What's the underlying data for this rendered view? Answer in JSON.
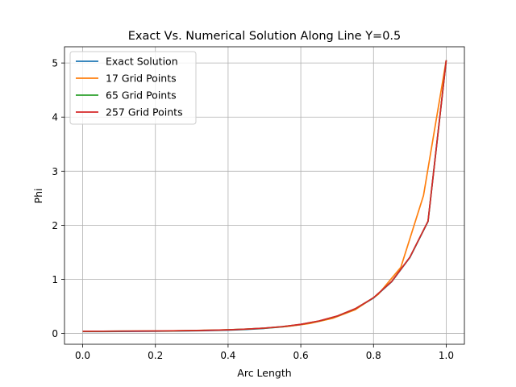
{
  "chart_data": {
    "type": "line",
    "title": "Exact Vs. Numerical Solution Along Line Y=0.5",
    "xlabel": "Arc Length",
    "ylabel": "Phi",
    "xlim": [
      -0.05,
      1.05
    ],
    "ylim": [
      -0.2,
      5.3
    ],
    "xticks": [
      0.0,
      0.2,
      0.4,
      0.6,
      0.8,
      1.0
    ],
    "xtick_labels": [
      "0.0",
      "0.2",
      "0.4",
      "0.6",
      "0.8",
      "1.0"
    ],
    "yticks": [
      0,
      1,
      2,
      3,
      4,
      5
    ],
    "ytick_labels": [
      "0",
      "1",
      "2",
      "3",
      "4",
      "5"
    ],
    "grid": true,
    "legend_position": "top-left",
    "series": [
      {
        "name": "Exact Solution",
        "color": "#1f77b4",
        "x": [
          0.0,
          0.05,
          0.1,
          0.15,
          0.2,
          0.25,
          0.3,
          0.35,
          0.4,
          0.45,
          0.5,
          0.55,
          0.6,
          0.65,
          0.7,
          0.75,
          0.8,
          0.85,
          0.9,
          0.95,
          1.0
        ],
        "y": [
          0.034,
          0.035,
          0.037,
          0.038,
          0.04,
          0.043,
          0.047,
          0.053,
          0.061,
          0.074,
          0.093,
          0.121,
          0.163,
          0.225,
          0.316,
          0.452,
          0.654,
          0.955,
          1.403,
          2.07,
          5.05
        ]
      },
      {
        "name": "17 Grid Points",
        "color": "#ff7f0e",
        "x": [
          0.0,
          0.0625,
          0.125,
          0.1875,
          0.25,
          0.3125,
          0.375,
          0.4375,
          0.5,
          0.5625,
          0.625,
          0.6875,
          0.75,
          0.8125,
          0.875,
          0.9375,
          1.0
        ],
        "y": [
          0.04,
          0.041,
          0.043,
          0.046,
          0.05,
          0.056,
          0.064,
          0.077,
          0.097,
          0.13,
          0.185,
          0.28,
          0.44,
          0.72,
          1.22,
          2.55,
          5.05
        ]
      },
      {
        "name": "65 Grid Points",
        "color": "#2ca02c",
        "x": [
          0.0,
          0.05,
          0.1,
          0.15,
          0.2,
          0.25,
          0.3,
          0.35,
          0.4,
          0.45,
          0.5,
          0.55,
          0.6,
          0.65,
          0.7,
          0.75,
          0.8,
          0.85,
          0.9,
          0.95,
          1.0
        ],
        "y": [
          0.039,
          0.04,
          0.042,
          0.043,
          0.045,
          0.048,
          0.052,
          0.058,
          0.066,
          0.079,
          0.098,
          0.126,
          0.168,
          0.23,
          0.321,
          0.457,
          0.659,
          0.96,
          1.408,
          2.075,
          5.05
        ]
      },
      {
        "name": "257 Grid Points",
        "color": "#d62728",
        "x": [
          0.0,
          0.05,
          0.1,
          0.15,
          0.2,
          0.25,
          0.3,
          0.35,
          0.4,
          0.45,
          0.5,
          0.55,
          0.6,
          0.65,
          0.7,
          0.75,
          0.8,
          0.85,
          0.9,
          0.95,
          1.0
        ],
        "y": [
          0.04,
          0.041,
          0.043,
          0.044,
          0.046,
          0.049,
          0.053,
          0.059,
          0.067,
          0.08,
          0.099,
          0.127,
          0.169,
          0.231,
          0.322,
          0.458,
          0.66,
          0.961,
          1.409,
          2.076,
          5.05
        ]
      }
    ]
  }
}
